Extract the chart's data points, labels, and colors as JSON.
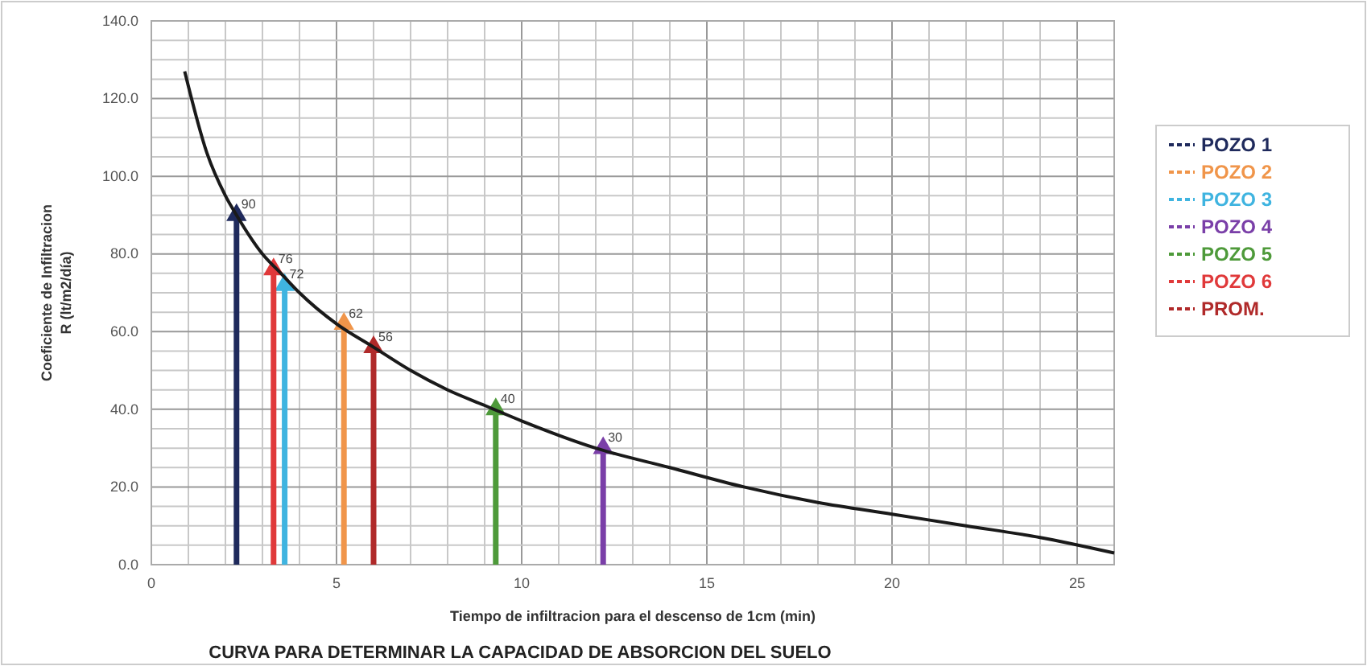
{
  "chart_data": {
    "type": "lollipop",
    "title": "CURVA PARA DETERMINAR LA CAPACIDAD DE ABSORCION DEL SUELO",
    "xlabel": "Tiempo de infiltracion para el descenso de 1cm (min)",
    "ylabel": "Coeficiente de Infiltracion\nR (lt/m2/día)",
    "xlim": [
      0,
      26
    ],
    "xticks": [
      0,
      {
        "value": 1,
        "label": null
      },
      {
        "value": 2,
        "label": null
      },
      {
        "value": 3,
        "label": null
      },
      {
        "value": 4,
        "label": null
      },
      5,
      {
        "value": 6,
        "label": null
      },
      {
        "value": 7,
        "label": null
      },
      {
        "value": 8,
        "label": null
      },
      {
        "value": 9,
        "label": null
      },
      10,
      {
        "value": 11,
        "label": null
      },
      {
        "value": 12,
        "label": null
      },
      {
        "value": 13,
        "label": null
      },
      {
        "value": 14,
        "label": null
      },
      15,
      {
        "value": 16,
        "label": null
      },
      {
        "value": 17,
        "label": null
      },
      {
        "value": 18,
        "label": null
      },
      {
        "value": 19,
        "label": null
      },
      20,
      {
        "value": 21,
        "label": null
      },
      {
        "value": 22,
        "label": null
      },
      {
        "value": 23,
        "label": null
      },
      {
        "value": 24,
        "label": null
      },
      25
    ],
    "ylim": [
      0,
      140
    ],
    "yticks": [
      {
        "value": 0,
        "label": "0.0"
      },
      {
        "value": 5,
        "label": null
      },
      {
        "value": 10,
        "label": null
      },
      {
        "value": 15,
        "label": null
      },
      {
        "value": 20,
        "label": "20.0"
      },
      {
        "value": 25,
        "label": null
      },
      {
        "value": 30,
        "label": null
      },
      {
        "value": 35,
        "label": null
      },
      {
        "value": 40,
        "label": "40.0"
      },
      {
        "value": 45,
        "label": null
      },
      {
        "value": 50,
        "label": null
      },
      {
        "value": 55,
        "label": null
      },
      {
        "value": 60,
        "label": "60.0"
      },
      {
        "value": 65,
        "label": null
      },
      {
        "value": 70,
        "label": null
      },
      {
        "value": 75,
        "label": null
      },
      {
        "value": 80,
        "label": "80.0"
      },
      {
        "value": 85,
        "label": null
      },
      {
        "value": 90,
        "label": null
      },
      {
        "value": 95,
        "label": null
      },
      {
        "value": 100,
        "label": "100.0"
      },
      {
        "value": 105,
        "label": null
      },
      {
        "value": 110,
        "label": null
      },
      {
        "value": 115,
        "label": null
      },
      {
        "value": 120,
        "label": "120.0"
      },
      {
        "value": 125,
        "label": null
      },
      {
        "value": 130,
        "label": null
      },
      {
        "value": 135,
        "label": null
      },
      {
        "value": 140,
        "label": "140.0"
      }
    ],
    "grid": true,
    "legend": "right",
    "marker": "triangle",
    "series": [
      {
        "type": "line",
        "color": "#1a1a1a",
        "marker": "none",
        "x": [
          0.9,
          1.5,
          2,
          2.3,
          3,
          3.5,
          4,
          5,
          6,
          7,
          8,
          9,
          10,
          12,
          14,
          16,
          18,
          20,
          22,
          24,
          26
        ],
        "values": [
          127,
          106,
          95,
          90,
          80,
          75,
          70,
          62,
          56,
          50,
          45,
          41,
          37,
          30,
          25,
          20,
          16,
          13,
          10,
          7,
          3
        ]
      },
      {
        "name": "POZO 1",
        "color": "#1f2a5c",
        "x": [
          2.3
        ],
        "values": [
          90
        ],
        "value_labels": [
          "90"
        ]
      },
      {
        "name": "POZO 2",
        "color": "#f0954a",
        "x": [
          5.2
        ],
        "values": [
          62
        ],
        "value_labels": [
          "62"
        ]
      },
      {
        "name": "POZO 3",
        "color": "#3fb4e0",
        "x": [
          3.6
        ],
        "values": [
          72
        ],
        "value_labels": [
          "72"
        ]
      },
      {
        "name": "POZO 4",
        "color": "#7a3fa8",
        "x": [
          12.2
        ],
        "values": [
          30
        ],
        "value_labels": [
          "30"
        ]
      },
      {
        "name": "POZO 5",
        "color": "#4e9a3a",
        "x": [
          9.3
        ],
        "values": [
          40
        ],
        "value_labels": [
          "40"
        ]
      },
      {
        "name": "POZO 6",
        "color": "#e0393a",
        "x": [
          3.3
        ],
        "values": [
          76
        ],
        "value_labels": [
          "76"
        ]
      },
      {
        "name": "PROM.",
        "color": "#b02a2a",
        "x": [
          6.0
        ],
        "values": [
          56
        ],
        "value_labels": [
          "56"
        ]
      }
    ]
  }
}
